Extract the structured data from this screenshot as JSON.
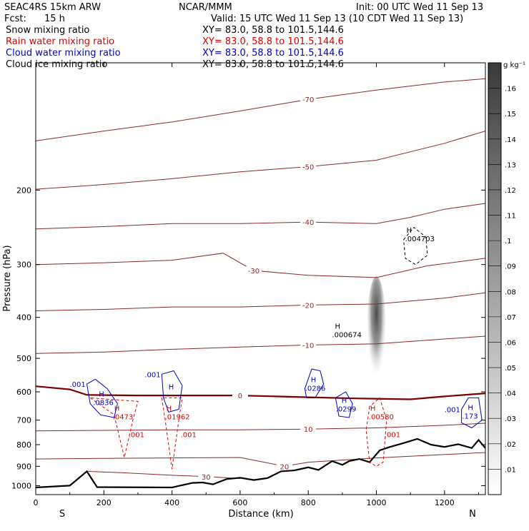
{
  "header": {
    "title": "SEAC4RS 15km ARW",
    "producer": "NCAR/MMM",
    "init": "Init: 00 UTC Wed 11 Sep 13",
    "fcst_label": "Fcst:",
    "fcst_value": "15 h",
    "valid": "Valid: 15 UTC Wed 11 Sep 13 (10 CDT Wed 11 Sep 13)"
  },
  "legend": [
    {
      "name": "Snow mixing ratio",
      "xy": "XY=  83.0, 58.8 to 101.5,144.6",
      "color": "#000000"
    },
    {
      "name": "Rain water mixing ratio",
      "xy": "XY=  83.0, 58.8 to 101.5,144.6",
      "color": "#e00000"
    },
    {
      "name": "Cloud water mixing ratio",
      "xy": "XY=  83.0, 58.8 to 101.5,144.6",
      "color": "#0000c8"
    },
    {
      "name": "Cloud ice mixing ratio",
      "xy": "XY=  83.0, 58.8 to 101.5,144.6",
      "color": "#000000"
    }
  ],
  "chart_data": {
    "type": "cross-section",
    "xlabel": "Distance (km)",
    "ylabel": "Pressure (hPa)",
    "xlim": [
      0,
      1320
    ],
    "ylim": [
      1050,
      100
    ],
    "y_scale": "log",
    "x_ticks": [
      0,
      200,
      400,
      600,
      800,
      1000,
      1200
    ],
    "y_ticks": [
      200,
      300,
      400,
      500,
      600,
      700,
      800,
      900,
      1000
    ],
    "end_labels": {
      "left": "S",
      "right": "N"
    },
    "colorbar": {
      "unit": "g kg⁻¹",
      "ticks": [
        ".01",
        ".02",
        ".03",
        ".04",
        ".05",
        ".06",
        ".07",
        ".08",
        ".09",
        ".1",
        ".11",
        ".12",
        ".13",
        ".14",
        ".15",
        ".16"
      ],
      "range": [
        0,
        0.17
      ]
    },
    "temperature_contours": [
      {
        "label": "-70",
        "points": [
          [
            0,
            153
          ],
          [
            200,
            145
          ],
          [
            400,
            138
          ],
          [
            600,
            130
          ],
          [
            800,
            122
          ],
          [
            1000,
            116
          ],
          [
            1200,
            111
          ],
          [
            1320,
            109
          ]
        ]
      },
      {
        "label": "-50",
        "points": [
          [
            0,
            199
          ],
          [
            200,
            194
          ],
          [
            400,
            188
          ],
          [
            600,
            181
          ],
          [
            800,
            176
          ],
          [
            1000,
            170
          ],
          [
            1200,
            155
          ],
          [
            1320,
            145
          ]
        ]
      },
      {
        "label": "-40",
        "points": [
          [
            0,
            247
          ],
          [
            200,
            244
          ],
          [
            400,
            240
          ],
          [
            600,
            240
          ],
          [
            800,
            238
          ],
          [
            1000,
            240
          ],
          [
            1100,
            232
          ],
          [
            1200,
            222
          ],
          [
            1320,
            215
          ]
        ]
      },
      {
        "label": "-30",
        "points": [
          [
            0,
            300
          ],
          [
            200,
            297
          ],
          [
            400,
            293
          ],
          [
            550,
            282
          ],
          [
            640,
            310
          ],
          [
            800,
            318
          ],
          [
            1000,
            322
          ],
          [
            1150,
            302
          ],
          [
            1320,
            290
          ]
        ]
      },
      {
        "label": "-20",
        "points": [
          [
            0,
            386
          ],
          [
            200,
            383
          ],
          [
            400,
            378
          ],
          [
            600,
            378
          ],
          [
            800,
            374
          ],
          [
            1000,
            372
          ],
          [
            1200,
            360
          ],
          [
            1320,
            350
          ]
        ]
      },
      {
        "label": "-10",
        "points": [
          [
            0,
            487
          ],
          [
            200,
            483
          ],
          [
            400,
            476
          ],
          [
            600,
            470
          ],
          [
            800,
            465
          ],
          [
            1000,
            462
          ],
          [
            1200,
            450
          ],
          [
            1320,
            443
          ]
        ]
      },
      {
        "label": "0",
        "points": [
          [
            0,
            582
          ],
          [
            100,
            592
          ],
          [
            150,
            610
          ],
          [
            300,
            612
          ],
          [
            400,
            612
          ],
          [
            600,
            612
          ],
          [
            800,
            618
          ],
          [
            950,
            622
          ],
          [
            1100,
            625
          ],
          [
            1200,
            615
          ],
          [
            1320,
            605
          ]
        ]
      },
      {
        "label": "10",
        "points": [
          [
            0,
            742
          ],
          [
            200,
            740
          ],
          [
            400,
            738
          ],
          [
            600,
            738
          ],
          [
            800,
            735
          ],
          [
            1000,
            730
          ],
          [
            1200,
            720
          ],
          [
            1320,
            712
          ]
        ]
      },
      {
        "label": "20",
        "points": [
          [
            0,
            865
          ],
          [
            200,
            862
          ],
          [
            400,
            860
          ],
          [
            600,
            858
          ],
          [
            730,
            900
          ],
          [
            800,
            880
          ],
          [
            900,
            870
          ],
          [
            1000,
            860
          ],
          [
            1320,
            835
          ]
        ]
      },
      {
        "label": "30",
        "points": [
          [
            150,
            925
          ],
          [
            250,
            932
          ],
          [
            400,
            945
          ],
          [
            500,
            952
          ],
          [
            560,
            958
          ],
          [
            600,
            962
          ]
        ]
      }
    ],
    "terrain": [
      [
        0,
        1010
      ],
      [
        100,
        1000
      ],
      [
        150,
        925
      ],
      [
        180,
        1008
      ],
      [
        400,
        1010
      ],
      [
        460,
        985
      ],
      [
        490,
        983
      ],
      [
        520,
        993
      ],
      [
        560,
        965
      ],
      [
        600,
        958
      ],
      [
        640,
        970
      ],
      [
        680,
        960
      ],
      [
        720,
        925
      ],
      [
        760,
        920
      ],
      [
        800,
        905
      ],
      [
        830,
        918
      ],
      [
        870,
        875
      ],
      [
        900,
        893
      ],
      [
        920,
        875
      ],
      [
        950,
        865
      ],
      [
        980,
        880
      ],
      [
        1010,
        825
      ],
      [
        1040,
        810
      ],
      [
        1080,
        793
      ],
      [
        1120,
        775
      ],
      [
        1160,
        800
      ],
      [
        1200,
        810
      ],
      [
        1240,
        798
      ],
      [
        1280,
        815
      ],
      [
        1300,
        780
      ],
      [
        1320,
        815
      ]
    ],
    "rain_water": [
      {
        "max_label": ".0473",
        "contour_label": ".001",
        "points": [
          [
            160,
            620
          ],
          [
            230,
            680
          ],
          [
            260,
            858
          ],
          [
            285,
            700
          ],
          [
            300,
            632
          ]
        ]
      },
      {
        "max_label": ".01962",
        "contour_label": ".001",
        "points": [
          [
            370,
            620
          ],
          [
            380,
            700
          ],
          [
            400,
            915
          ],
          [
            420,
            700
          ],
          [
            430,
            620
          ]
        ]
      },
      {
        "max_label": ".00580",
        "contour_label": ".001",
        "points": [
          [
            980,
            650
          ],
          [
            970,
            740
          ],
          [
            980,
            880
          ],
          [
            1000,
            900
          ],
          [
            1020,
            880
          ],
          [
            1030,
            700
          ],
          [
            1010,
            620
          ]
        ]
      }
    ],
    "cloud_water": [
      {
        "max_label": ".0836",
        "contour_label": ".001",
        "points": [
          [
            150,
            575
          ],
          [
            175,
            560
          ],
          [
            210,
            590
          ],
          [
            240,
            640
          ],
          [
            230,
            690
          ],
          [
            190,
            680
          ],
          [
            160,
            640
          ]
        ]
      },
      {
        "max_label": "",
        "contour_label": ".001",
        "points": [
          [
            370,
            545
          ],
          [
            405,
            535
          ],
          [
            430,
            580
          ],
          [
            420,
            660
          ],
          [
            390,
            670
          ],
          [
            375,
            620
          ]
        ]
      },
      {
        "max_label": ".0286",
        "contour_label": "",
        "points": [
          [
            790,
            590
          ],
          [
            810,
            530
          ],
          [
            835,
            535
          ],
          [
            845,
            575
          ],
          [
            820,
            620
          ],
          [
            795,
            620
          ]
        ]
      },
      {
        "max_label": ".0299",
        "contour_label": "",
        "points": [
          [
            880,
            620
          ],
          [
            910,
            600
          ],
          [
            930,
            640
          ],
          [
            920,
            690
          ],
          [
            890,
            685
          ]
        ]
      },
      {
        "max_label": ".173",
        "contour_label": ".001",
        "points": [
          [
            1250,
            660
          ],
          [
            1270,
            620
          ],
          [
            1300,
            620
          ],
          [
            1310,
            700
          ],
          [
            1280,
            730
          ],
          [
            1250,
            710
          ]
        ]
      }
    ],
    "snow": [
      {
        "max_label": ".004703",
        "points": [
          [
            1080,
            262
          ],
          [
            1110,
            245
          ],
          [
            1145,
            258
          ],
          [
            1150,
            285
          ],
          [
            1115,
            300
          ],
          [
            1085,
            290
          ]
        ]
      }
    ],
    "cloud_ice": [
      {
        "max_label": ".000674",
        "points": []
      }
    ],
    "shaded_column": {
      "x": 1000,
      "p_top": 320,
      "p_bottom": 625,
      "max": 0.12
    }
  }
}
